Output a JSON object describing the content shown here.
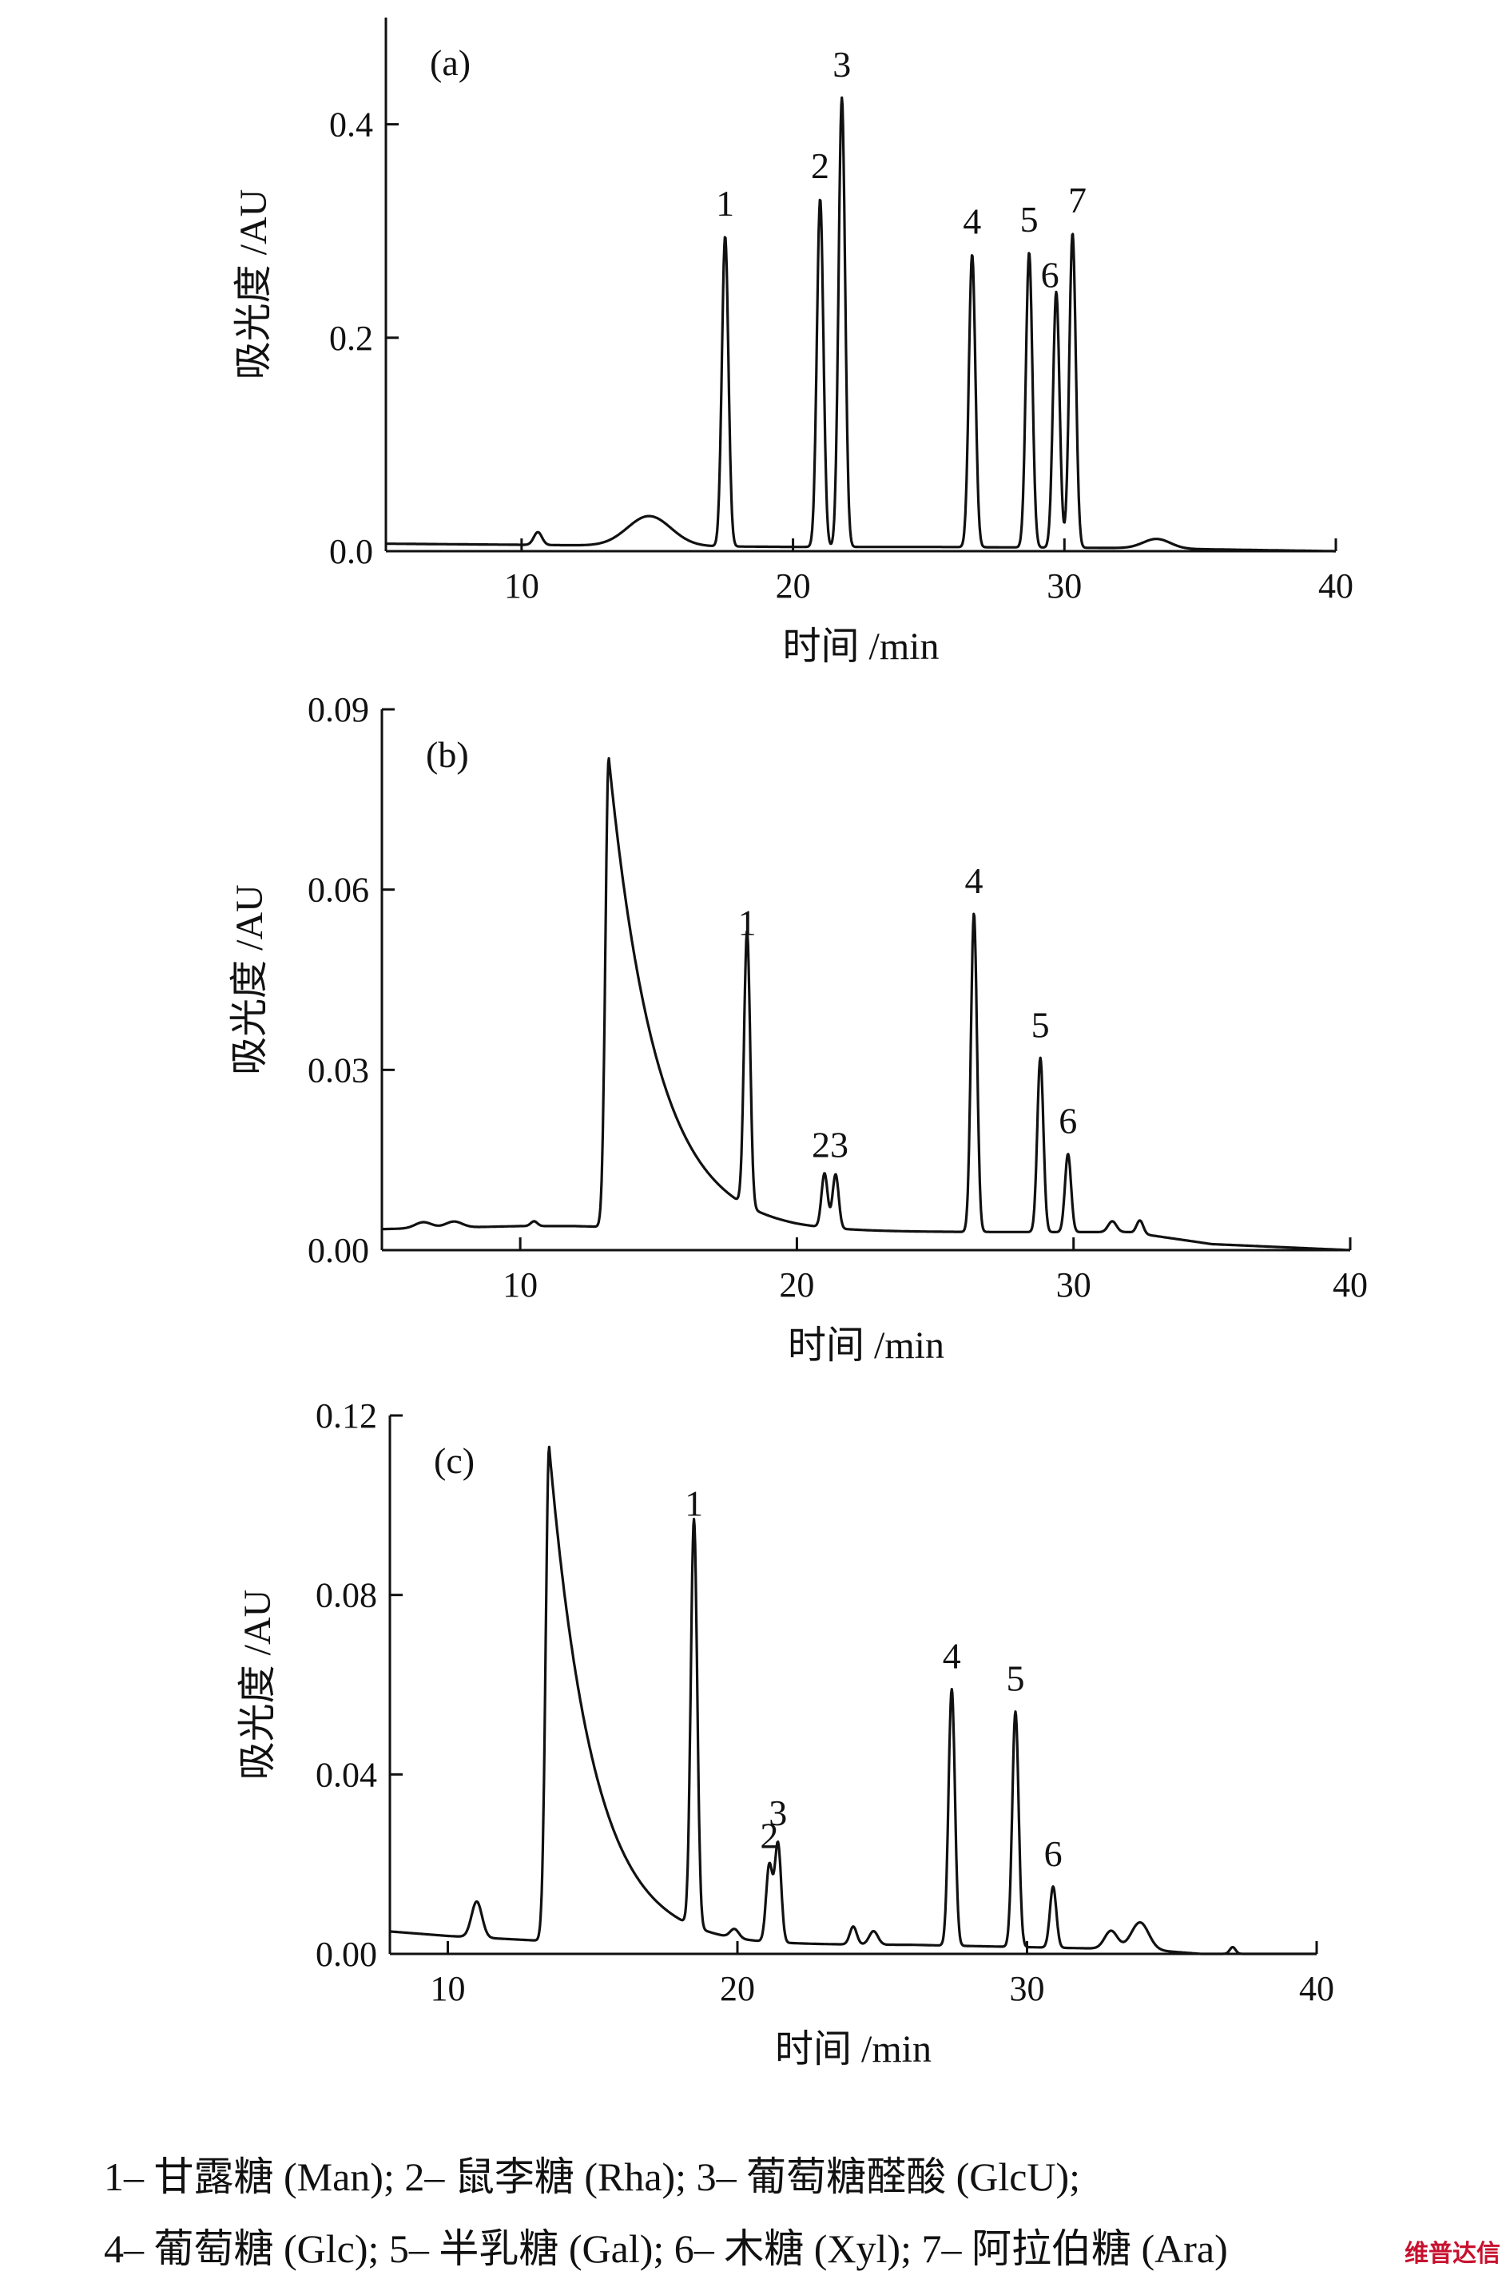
{
  "legend": {
    "line1": "1– 甘露糖 (Man); 2– 鼠李糖 (Rha); 3– 葡萄糖醛酸 (GlcU);",
    "line2": "4– 葡萄糖 (Glc); 5– 半乳糖 (Gal); 6– 木糖 (Xyl); 7– 阿拉伯糖 (Ara)"
  },
  "watermark": "维普达信",
  "chart_data": [
    {
      "type": "line",
      "panel_label": "(a)",
      "xlabel": "时间 /min",
      "ylabel": "吸光度 /AU",
      "xlim": [
        5,
        40
      ],
      "ylim": [
        0,
        0.5
      ],
      "xticks": [
        10,
        20,
        30,
        40
      ],
      "yticks": [
        0.0,
        0.2,
        0.4
      ],
      "ytick_labels": [
        "0.0",
        "0.2",
        "0.4"
      ],
      "baseline": [
        [
          5,
          0.007
        ],
        [
          10,
          0.006
        ],
        [
          14,
          0.005
        ],
        [
          20,
          0.004
        ],
        [
          25,
          0.004
        ],
        [
          32,
          0.003
        ],
        [
          40,
          0.0
        ]
      ],
      "bumps": [
        [
          10.6,
          0.012,
          0.15
        ],
        [
          14.7,
          0.028,
          0.8
        ],
        [
          33.4,
          0.009,
          0.5
        ]
      ],
      "series": [
        {
          "peaks": [
            {
              "label": "1",
              "x": 17.5,
              "y": 0.295
            },
            {
              "label": "2",
              "x": 21.0,
              "y": 0.33
            },
            {
              "label": "3",
              "x": 21.8,
              "y": 0.425
            },
            {
              "label": "4",
              "x": 26.6,
              "y": 0.278
            },
            {
              "label": "5",
              "x": 28.7,
              "y": 0.28
            },
            {
              "label": "6",
              "x": 29.7,
              "y": 0.243
            },
            {
              "label": "7",
              "x": 30.3,
              "y": 0.298
            }
          ]
        }
      ]
    },
    {
      "type": "line",
      "panel_label": "(b)",
      "xlabel": "时间 /min",
      "ylabel": "吸光度 /AU",
      "xlim": [
        5,
        40
      ],
      "ylim": [
        0,
        0.09
      ],
      "xticks": [
        10,
        20,
        30,
        40
      ],
      "yticks": [
        0.0,
        0.03,
        0.06,
        0.09
      ],
      "ytick_labels": [
        "0.00",
        "0.03",
        "0.06",
        "0.09"
      ],
      "baseline": [
        [
          5,
          0.0035
        ],
        [
          10,
          0.004
        ],
        [
          12,
          0.004
        ],
        [
          20,
          0.003
        ],
        [
          25,
          0.003
        ],
        [
          32,
          0.003
        ],
        [
          35,
          0.001
        ],
        [
          40,
          0.0
        ]
      ],
      "bumps": [
        [
          6.5,
          0.001,
          0.3
        ],
        [
          7.6,
          0.001,
          0.3
        ],
        [
          10.5,
          0.0008,
          0.12
        ],
        [
          31.4,
          0.0018,
          0.15
        ],
        [
          32.4,
          0.0022,
          0.12
        ]
      ],
      "tail": {
        "x": 13.2,
        "y": 0.082,
        "decay": 1.7
      },
      "series": [
        {
          "peaks": [
            {
              "label": "1",
              "x": 18.2,
              "y": 0.049
            },
            {
              "label": "2",
              "x": 21.0,
              "y": 0.012
            },
            {
              "label": "3",
              "x": 21.4,
              "y": 0.012
            },
            {
              "label": "4",
              "x": 26.4,
              "y": 0.056
            },
            {
              "label": "5",
              "x": 28.8,
              "y": 0.032
            },
            {
              "label": "6",
              "x": 29.8,
              "y": 0.016
            }
          ]
        }
      ]
    },
    {
      "type": "line",
      "panel_label": "(c)",
      "xlabel": "时间 /min",
      "ylabel": "吸光度 /AU",
      "xlim": [
        8,
        40
      ],
      "ylim": [
        0,
        0.12
      ],
      "xticks": [
        10,
        20,
        30,
        40
      ],
      "yticks": [
        0.0,
        0.04,
        0.08,
        0.12
      ],
      "ytick_labels": [
        "0.00",
        "0.04",
        "0.08",
        "0.12"
      ],
      "baseline": [
        [
          8,
          0.005
        ],
        [
          10,
          0.004
        ],
        [
          13,
          0.003
        ],
        [
          20,
          0.002
        ],
        [
          26,
          0.002
        ],
        [
          34,
          0.001
        ],
        [
          36,
          0.0
        ],
        [
          40,
          0.0
        ]
      ],
      "bumps": [
        [
          11.0,
          0.008,
          0.18
        ],
        [
          19.9,
          0.002,
          0.15
        ],
        [
          24.0,
          0.004,
          0.12
        ],
        [
          24.7,
          0.003,
          0.15
        ],
        [
          32.9,
          0.004,
          0.22
        ],
        [
          33.9,
          0.006,
          0.3
        ],
        [
          37.1,
          0.0015,
          0.1
        ]
      ],
      "tail": {
        "x": 13.5,
        "y": 0.113,
        "decay": 1.5
      },
      "series": [
        {
          "peaks": [
            {
              "label": "1",
              "x": 18.5,
              "y": 0.093
            },
            {
              "label": "2",
              "x": 21.1,
              "y": 0.019
            },
            {
              "label": "3",
              "x": 21.4,
              "y": 0.024
            },
            {
              "label": "4",
              "x": 27.4,
              "y": 0.059
            },
            {
              "label": "5",
              "x": 29.6,
              "y": 0.054
            },
            {
              "label": "6",
              "x": 30.9,
              "y": 0.015
            }
          ]
        }
      ]
    }
  ]
}
